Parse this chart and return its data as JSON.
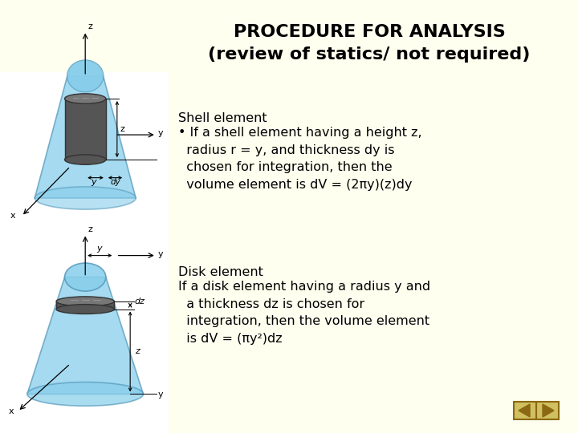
{
  "background_color": "#FFFFF0",
  "white_panel_color": "#FFFFFF",
  "title_line1": "PROCEDURE FOR ANALYSIS",
  "title_line2": "(review of statics/ not required)",
  "title_fontsize": 16,
  "shell_heading": "Shell element",
  "shell_bullet": "• If a shell element having a height z,\n  radius r = y, and thickness dy is\n  chosen for integration, then the\n  volume element is dV = (2πy)(z)dy",
  "disk_heading": "Disk element",
  "disk_body": "If a disk element having a radius y and\n  a thickness dz is chosen for\n  integration, then the volume element\n  is dV = (πy²)dz",
  "text_fontsize": 11.5,
  "heading_fontsize": 11.5,
  "nav_arrow_color": "#8B6914",
  "cone_blue": "#87CEEB",
  "cone_edge": "#5599BB",
  "cyl_dark": "#555555",
  "cyl_top": "#777777",
  "cyl_edge": "#333333"
}
